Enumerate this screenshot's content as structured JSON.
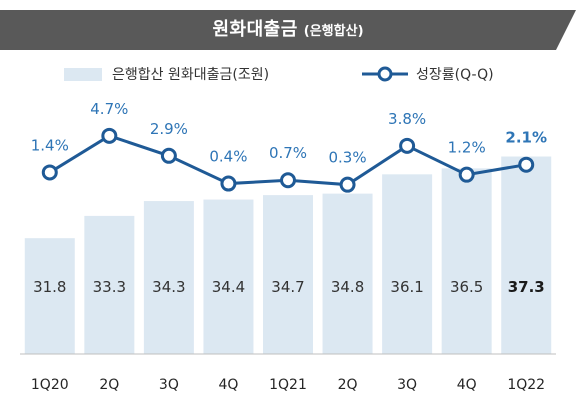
{
  "title": {
    "main": "원화대출금",
    "sub": "(은행합산)"
  },
  "legend": {
    "bar_label": "은행합산 원화대출금(조원)",
    "line_label": "성장률(Q-Q)"
  },
  "colors": {
    "bar": "#dce8f2",
    "line": "#1f5a96",
    "marker_fill": "#ffffff",
    "growth_label": "#2e75b6",
    "value_label": "#333333",
    "title_bg": "#595959"
  },
  "chart_data": {
    "type": "bar",
    "categories": [
      "1Q20",
      "2Q",
      "3Q",
      "4Q",
      "1Q21",
      "2Q",
      "3Q",
      "4Q",
      "1Q22"
    ],
    "series": [
      {
        "name": "은행합산 원화대출금(조원)",
        "type": "bar",
        "values": [
          31.8,
          33.3,
          34.3,
          34.4,
          34.7,
          34.8,
          36.1,
          36.5,
          37.3
        ],
        "labels": [
          "31.8",
          "33.3",
          "34.3",
          "34.4",
          "34.7",
          "34.8",
          "36.1",
          "36.5",
          "37.3"
        ]
      },
      {
        "name": "성장률(Q-Q)",
        "type": "line",
        "values": [
          1.4,
          4.7,
          2.9,
          0.4,
          0.7,
          0.3,
          3.8,
          1.2,
          2.1
        ],
        "labels": [
          "1.4%",
          "4.7%",
          "2.9%",
          "0.4%",
          "0.7%",
          "0.3%",
          "3.8%",
          "1.2%",
          "2.1%"
        ]
      }
    ],
    "highlight_last": true
  }
}
